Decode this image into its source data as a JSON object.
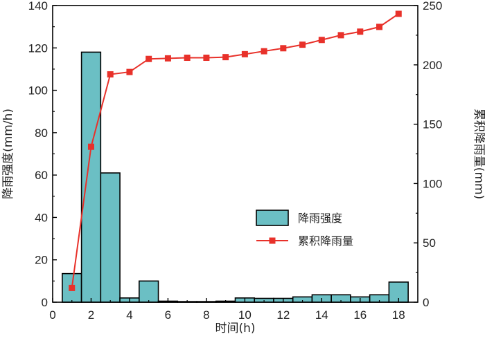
{
  "chart_data": {
    "type": "bar+line",
    "x_axis": {
      "label": "时间(h)",
      "range": [
        0,
        19
      ],
      "ticks": [
        0,
        2,
        4,
        6,
        8,
        10,
        12,
        14,
        16,
        18
      ],
      "tick_labels": [
        "0",
        "2",
        "4",
        "6",
        "8",
        "10",
        "12",
        "14",
        "16",
        "18"
      ]
    },
    "y_left": {
      "label": "降雨强度(mm/h)",
      "range": [
        0,
        140
      ],
      "ticks": [
        0,
        20,
        40,
        60,
        80,
        100,
        120,
        140
      ],
      "tick_labels": [
        "0",
        "20",
        "40",
        "60",
        "80",
        "100",
        "120",
        "140"
      ]
    },
    "y_right": {
      "label": "累积降雨量(mm)",
      "range": [
        0,
        250
      ],
      "ticks": [
        0,
        50,
        100,
        150,
        200,
        250
      ],
      "tick_labels": [
        "0",
        "50",
        "100",
        "150",
        "200",
        "250"
      ]
    },
    "series": [
      {
        "name": "降雨强度",
        "kind": "bar",
        "axis": "left",
        "color": "#6bbfc4",
        "x": [
          1,
          2,
          3,
          4,
          5,
          6,
          7,
          8,
          9,
          10,
          11,
          12,
          13,
          14,
          15,
          16,
          17,
          18
        ],
        "values": [
          13.5,
          118,
          61,
          2,
          10,
          0.5,
          0.3,
          0.3,
          0.5,
          2,
          1.8,
          1.8,
          2.5,
          3.5,
          3.5,
          2.5,
          3.5,
          9.5
        ]
      },
      {
        "name": "累积降雨量",
        "kind": "line",
        "axis": "right",
        "color": "#e8312a",
        "marker": "square",
        "x": [
          1,
          2,
          3,
          4,
          5,
          6,
          7,
          8,
          9,
          10,
          11,
          12,
          13,
          14,
          15,
          16,
          17,
          18
        ],
        "values": [
          12,
          131,
          192,
          194,
          205,
          205.5,
          206,
          206,
          206.5,
          209,
          211.5,
          214,
          217,
          221,
          225,
          228,
          232,
          243
        ]
      }
    ],
    "legend": {
      "placement": "center-right"
    }
  }
}
